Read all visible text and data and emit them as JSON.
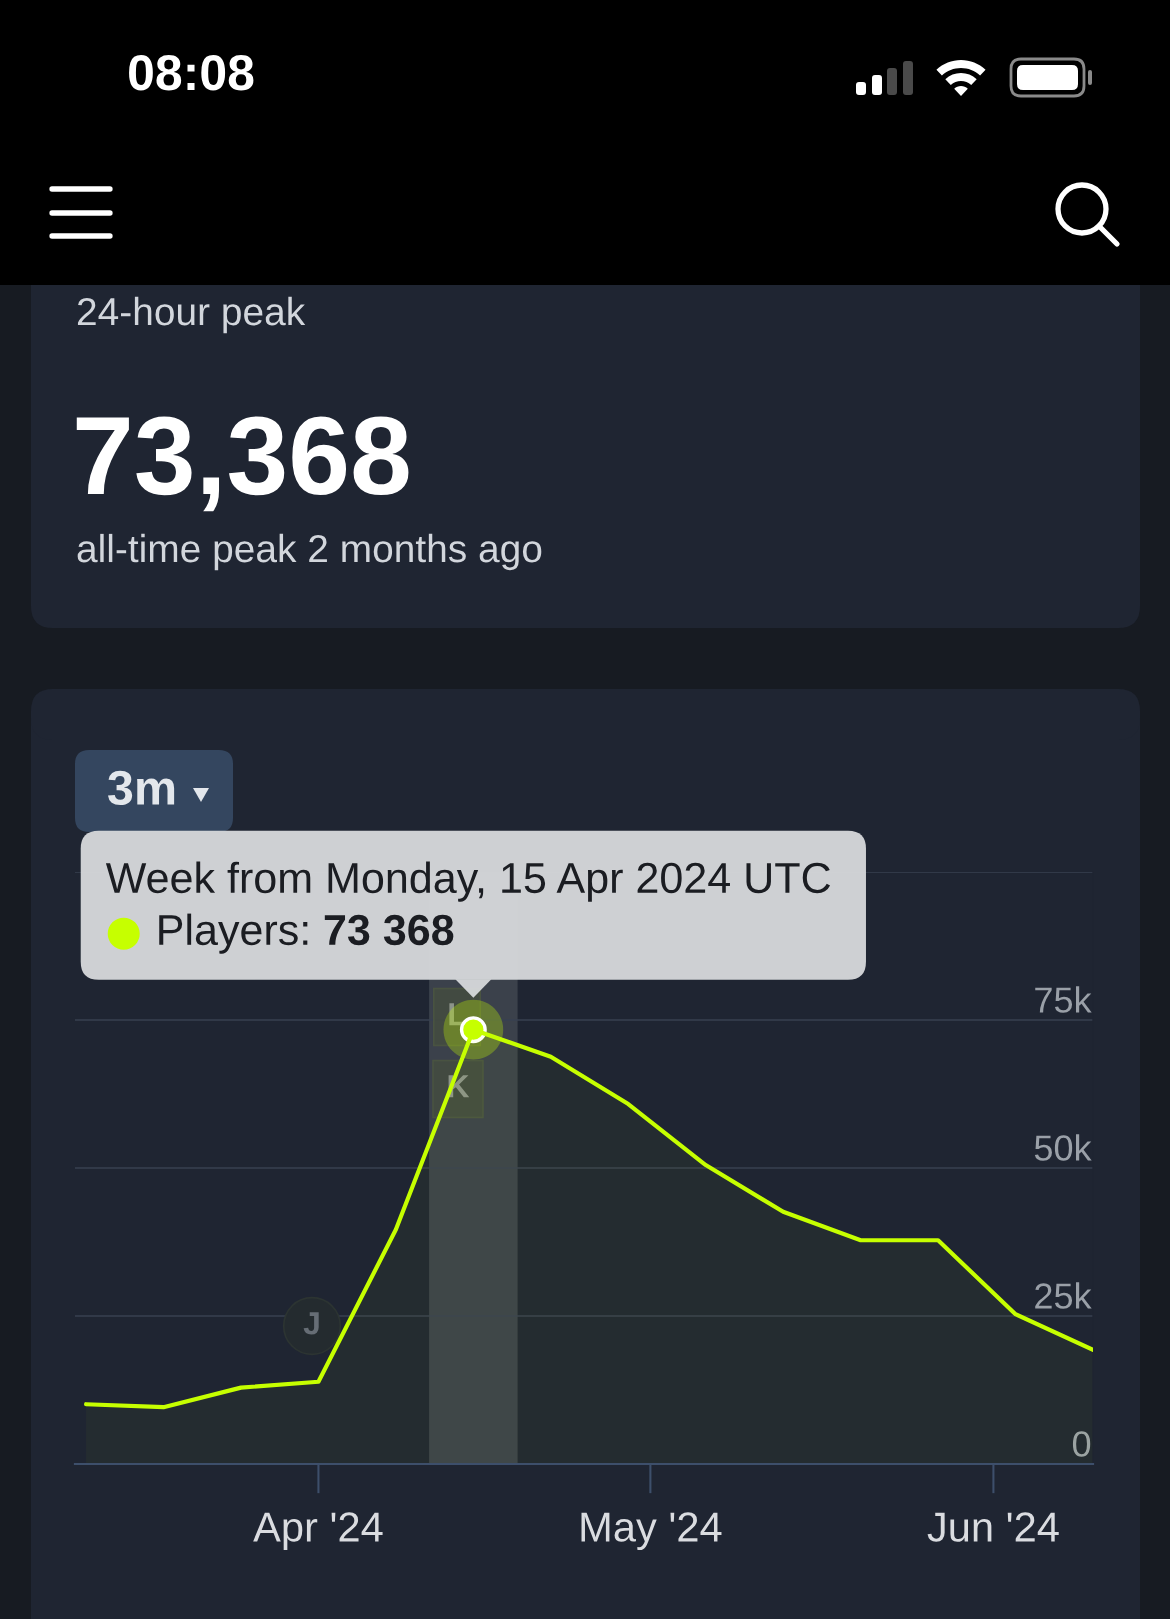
{
  "chart_data": [
    {
      "type": "other",
      "title": "73,368",
      "subtitle": "all-time peak 2 months ago",
      "annotations": [
        "08:08",
        "24-hour peak"
      ]
    },
    {
      "type": "area",
      "x": [
        "2024-03-11",
        "2024-03-18",
        "2024-03-25",
        "2024-04-01",
        "2024-04-08",
        "2024-04-15",
        "2024-04-22",
        "2024-04-29",
        "2024-05-06",
        "2024-05-13",
        "2024-05-20",
        "2024-05-27",
        "2024-06-03",
        "2024-06-10"
      ],
      "series": [
        {
          "name": "Players:",
          "color": "#c6ff00",
          "values": [
            10100,
            9600,
            12900,
            13900,
            39600,
            73368,
            68800,
            60800,
            50500,
            42600,
            37800,
            37800,
            25300,
            19300
          ],
          "value_labels": [
            null,
            null,
            null,
            null,
            null,
            "73 368",
            null,
            null,
            null,
            null,
            null,
            null,
            null,
            null
          ]
        }
      ],
      "xlim": [
        "2024-03-10",
        "2024-06-10"
      ],
      "xticks": [
        {
          "value": "2024-04-01",
          "label": "Apr '24"
        },
        {
          "value": "2024-05-01",
          "label": "May '24"
        },
        {
          "value": "2024-06-01",
          "label": "Jun '24"
        }
      ],
      "ylim": [
        0,
        100000
      ],
      "yticks": [
        0,
        {
          "value": 25000,
          "label": "25k"
        },
        {
          "value": 50000,
          "label": "50k"
        },
        {
          "value": 75000,
          "label": "75k"
        },
        {
          "value": 100000,
          "label": null
        }
      ],
      "grid": "y",
      "bands": [
        {
          "axis": "x",
          "from": "2024-04-11",
          "to": "2024-04-19",
          "color": "#3b414b"
        }
      ],
      "annotations": [
        "3m",
        {
          "text": "Week from Monday, 15 Apr 2024 UTC",
          "x": "2024-04-15",
          "y": 73368
        },
        "J",
        "K",
        "L"
      ]
    }
  ]
}
